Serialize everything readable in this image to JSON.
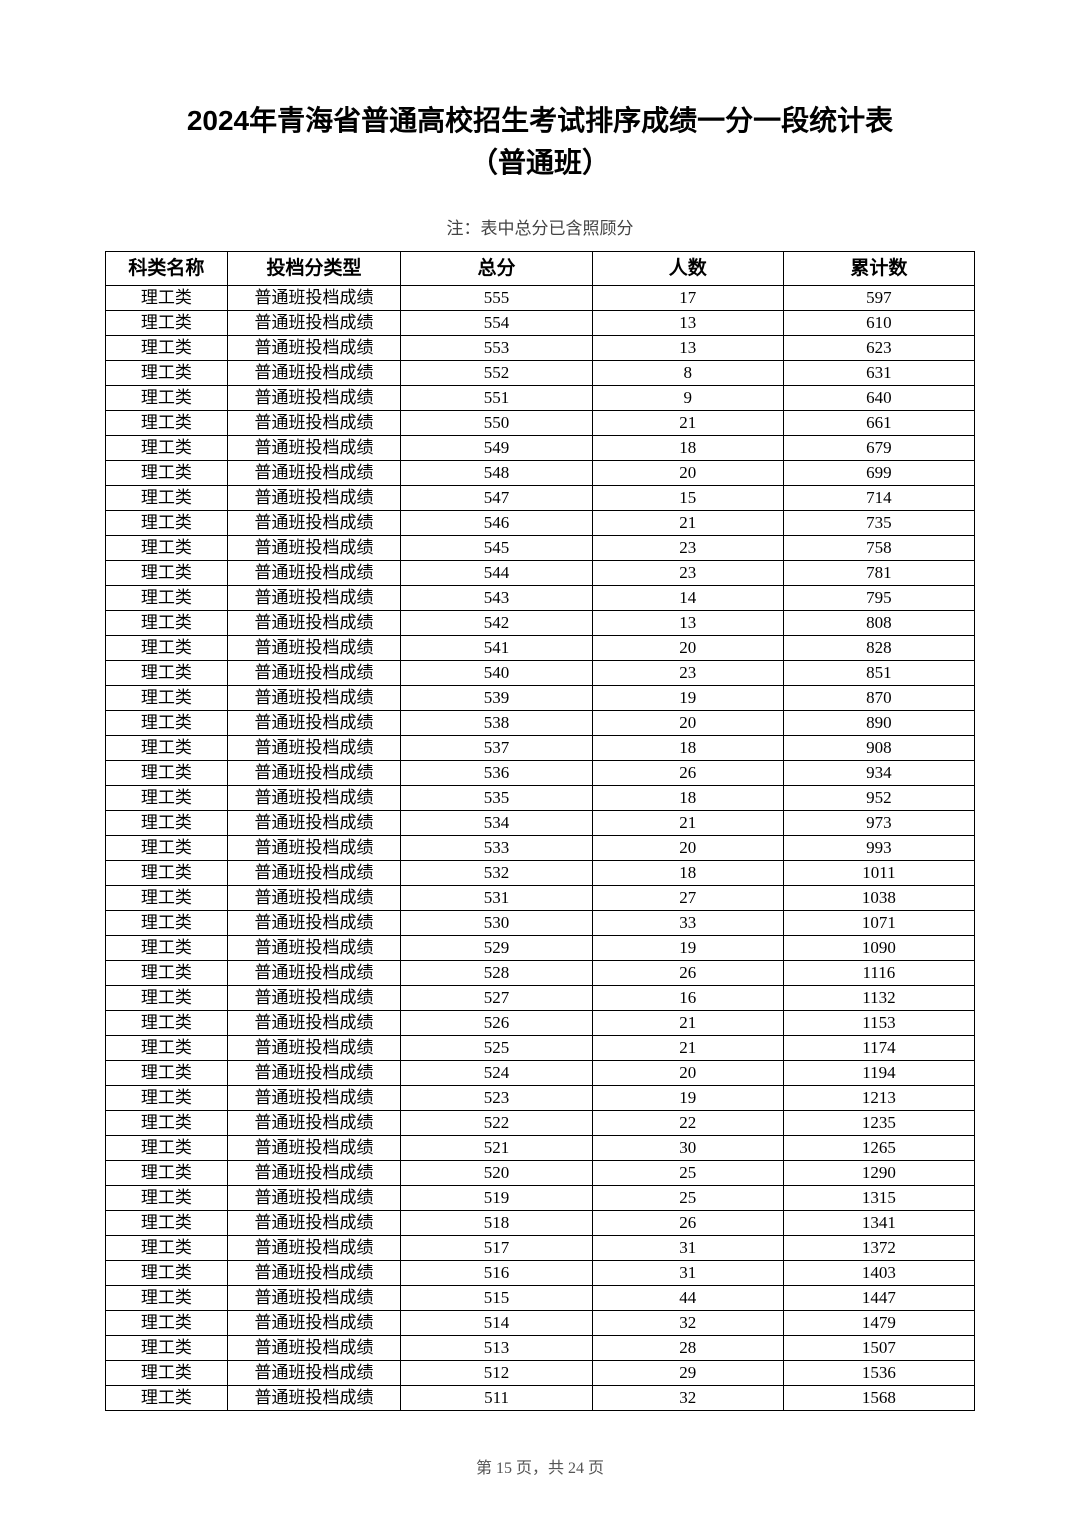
{
  "title_line1": "2024年青海省普通高校招生考试排序成绩一分一段统计表",
  "title_line2": "（普通班）",
  "note": "注：表中总分已含照顾分",
  "columns": [
    "科类名称",
    "投档分类型",
    "总分",
    "人数",
    "累计数"
  ],
  "category": "理工类",
  "type": "普通班投档成绩",
  "rows": [
    {
      "score": 555,
      "count": 17,
      "cumulative": 597
    },
    {
      "score": 554,
      "count": 13,
      "cumulative": 610
    },
    {
      "score": 553,
      "count": 13,
      "cumulative": 623
    },
    {
      "score": 552,
      "count": 8,
      "cumulative": 631
    },
    {
      "score": 551,
      "count": 9,
      "cumulative": 640
    },
    {
      "score": 550,
      "count": 21,
      "cumulative": 661
    },
    {
      "score": 549,
      "count": 18,
      "cumulative": 679
    },
    {
      "score": 548,
      "count": 20,
      "cumulative": 699
    },
    {
      "score": 547,
      "count": 15,
      "cumulative": 714
    },
    {
      "score": 546,
      "count": 21,
      "cumulative": 735
    },
    {
      "score": 545,
      "count": 23,
      "cumulative": 758
    },
    {
      "score": 544,
      "count": 23,
      "cumulative": 781
    },
    {
      "score": 543,
      "count": 14,
      "cumulative": 795
    },
    {
      "score": 542,
      "count": 13,
      "cumulative": 808
    },
    {
      "score": 541,
      "count": 20,
      "cumulative": 828
    },
    {
      "score": 540,
      "count": 23,
      "cumulative": 851
    },
    {
      "score": 539,
      "count": 19,
      "cumulative": 870
    },
    {
      "score": 538,
      "count": 20,
      "cumulative": 890
    },
    {
      "score": 537,
      "count": 18,
      "cumulative": 908
    },
    {
      "score": 536,
      "count": 26,
      "cumulative": 934
    },
    {
      "score": 535,
      "count": 18,
      "cumulative": 952
    },
    {
      "score": 534,
      "count": 21,
      "cumulative": 973
    },
    {
      "score": 533,
      "count": 20,
      "cumulative": 993
    },
    {
      "score": 532,
      "count": 18,
      "cumulative": 1011
    },
    {
      "score": 531,
      "count": 27,
      "cumulative": 1038
    },
    {
      "score": 530,
      "count": 33,
      "cumulative": 1071
    },
    {
      "score": 529,
      "count": 19,
      "cumulative": 1090
    },
    {
      "score": 528,
      "count": 26,
      "cumulative": 1116
    },
    {
      "score": 527,
      "count": 16,
      "cumulative": 1132
    },
    {
      "score": 526,
      "count": 21,
      "cumulative": 1153
    },
    {
      "score": 525,
      "count": 21,
      "cumulative": 1174
    },
    {
      "score": 524,
      "count": 20,
      "cumulative": 1194
    },
    {
      "score": 523,
      "count": 19,
      "cumulative": 1213
    },
    {
      "score": 522,
      "count": 22,
      "cumulative": 1235
    },
    {
      "score": 521,
      "count": 30,
      "cumulative": 1265
    },
    {
      "score": 520,
      "count": 25,
      "cumulative": 1290
    },
    {
      "score": 519,
      "count": 25,
      "cumulative": 1315
    },
    {
      "score": 518,
      "count": 26,
      "cumulative": 1341
    },
    {
      "score": 517,
      "count": 31,
      "cumulative": 1372
    },
    {
      "score": 516,
      "count": 31,
      "cumulative": 1403
    },
    {
      "score": 515,
      "count": 44,
      "cumulative": 1447
    },
    {
      "score": 514,
      "count": 32,
      "cumulative": 1479
    },
    {
      "score": 513,
      "count": 28,
      "cumulative": 1507
    },
    {
      "score": 512,
      "count": 29,
      "cumulative": 1536
    },
    {
      "score": 511,
      "count": 32,
      "cumulative": 1568
    }
  ],
  "footer": "第 15 页，共 24 页"
}
